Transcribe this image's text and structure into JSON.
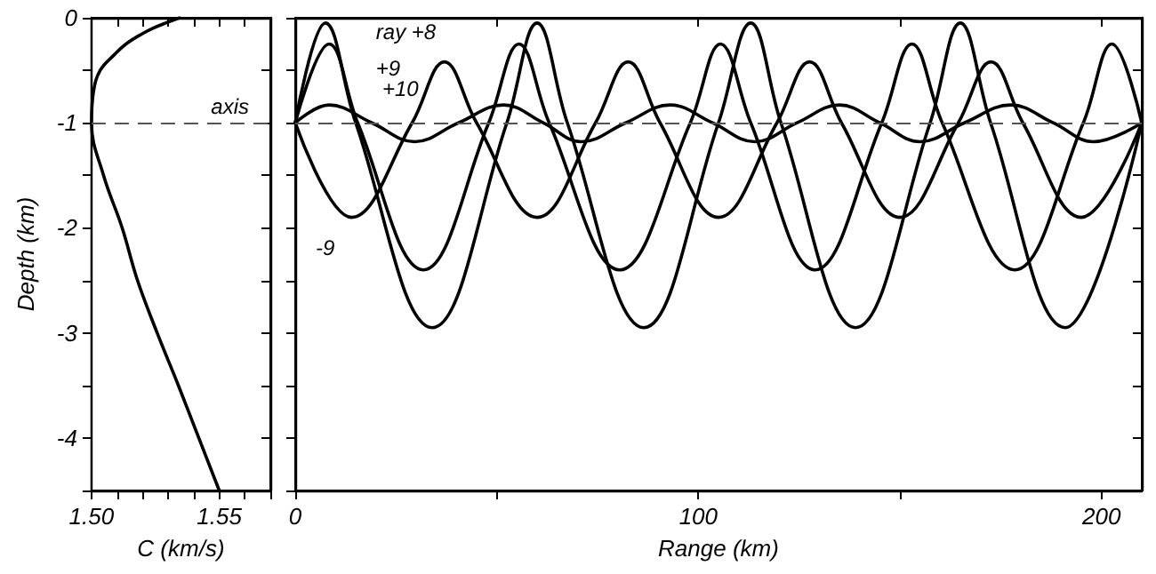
{
  "chart_data": [
    {
      "type": "line",
      "xlabel": "C (km/s)",
      "ylabel": "Depth (km)",
      "xlim": [
        1.5,
        1.57
      ],
      "xticks": [
        {
          "value": 1.5,
          "label": "1.50"
        },
        {
          "value": 1.51,
          "label": null
        },
        {
          "value": 1.52,
          "label": null
        },
        {
          "value": 1.53,
          "label": null
        },
        {
          "value": 1.54,
          "label": null
        },
        {
          "value": 1.55,
          "label": "1.55"
        },
        {
          "value": 1.56,
          "label": null
        },
        {
          "value": 1.57,
          "label": null
        }
      ],
      "ylim": [
        -4.5,
        0
      ],
      "yticks": [
        0,
        {
          "value": -0.5,
          "label": null
        },
        -1,
        {
          "value": -1.5,
          "label": null
        },
        -2,
        {
          "value": -2.5,
          "label": null
        },
        -3,
        {
          "value": -3.5,
          "label": null
        },
        -4,
        {
          "value": -4.5,
          "label": null
        }
      ],
      "grid": false,
      "marker": "none",
      "line_style": "solid",
      "ref_lines": [
        {
          "axis": "y",
          "value": -1,
          "label": "axis",
          "color": "#555555",
          "line_style": "dashed"
        }
      ],
      "series": [
        {
          "color": "#000000",
          "x": [
            1.5345,
            1.529,
            1.524,
            1.52,
            1.5135,
            1.509,
            1.5034,
            1.5008,
            1.5,
            1.5047,
            1.512,
            1.518,
            1.5257,
            1.534,
            1.542,
            1.55
          ],
          "values": [
            0,
            -0.05,
            -0.1,
            -0.15,
            -0.25,
            -0.35,
            -0.5,
            -0.7,
            -1,
            -1.5,
            -2,
            -2.5,
            -3,
            -3.5,
            -4,
            -4.5
          ]
        }
      ]
    },
    {
      "type": "line",
      "xlabel": "Range (km)",
      "xlim": [
        0,
        210
      ],
      "xticks": [
        0,
        {
          "value": 50,
          "label": null
        },
        100,
        {
          "value": 150,
          "label": null
        },
        200
      ],
      "ylim": [
        -4.5,
        0
      ],
      "yticks": [
        0,
        {
          "value": -0.5,
          "label": null
        },
        -1,
        {
          "value": -1.5,
          "label": null
        },
        -2,
        {
          "value": -2.5,
          "label": null
        },
        -3,
        {
          "value": -3.5,
          "label": null
        },
        -4,
        {
          "value": -4.5,
          "label": null
        }
      ],
      "tick_labels": "x",
      "grid": false,
      "marker": "none",
      "line_style": "solid",
      "ref_lines": [
        {
          "axis": "y",
          "value": -1,
          "color": "#555555",
          "line_style": "dashed"
        }
      ],
      "annotations": [
        {
          "text": "ray +8",
          "x": 9,
          "y": -0.1
        },
        {
          "text": "+9",
          "x": 9,
          "y": -0.35
        },
        {
          "text": "+10",
          "x": 15,
          "y": -0.88
        },
        {
          "text": "-9",
          "x": 12,
          "y": -1.95
        }
      ],
      "series": [
        {
          "color": "#000000",
          "x": [
            0,
            7.5,
            15,
            34,
            52.5,
            60,
            67.5,
            86.5,
            105,
            113,
            120.5,
            139,
            157.5,
            165,
            172.5,
            191,
            210
          ],
          "values": [
            -1,
            -0.05,
            -1,
            -2.95,
            -1,
            -0.05,
            -1,
            -2.95,
            -1,
            -0.05,
            -1,
            -2.95,
            -1,
            -0.05,
            -1,
            -2.95,
            -1
          ]
        },
        {
          "color": "#000000",
          "x": [
            0,
            8.4,
            15.5,
            31.8,
            48,
            55.5,
            63,
            80.5,
            98,
            105.5,
            113,
            129,
            145.5,
            153,
            160.5,
            178.5,
            195.5,
            202.6,
            210
          ],
          "values": [
            -1,
            -0.25,
            -1,
            -2.4,
            -1,
            -0.25,
            -1,
            -2.4,
            -1,
            -0.25,
            -1,
            -2.4,
            -1,
            -0.25,
            -1,
            -2.4,
            -1,
            -0.25,
            -1
          ]
        },
        {
          "color": "#000000",
          "x": [
            0,
            14,
            29,
            37,
            45,
            60,
            74.5,
            82.6,
            90.5,
            105,
            119.5,
            127.6,
            135.5,
            150,
            164.5,
            172.6,
            180.5,
            195,
            210
          ],
          "values": [
            -1,
            -1.9,
            -1,
            -0.42,
            -1,
            -1.9,
            -1,
            -0.42,
            -1,
            -1.9,
            -1,
            -0.42,
            -1,
            -1.9,
            -1,
            -0.42,
            -1,
            -1.9,
            -1
          ]
        },
        {
          "color": "#000000",
          "x": [
            0,
            8.4,
            19,
            29.6,
            40.5,
            51.7,
            61.5,
            71,
            82,
            93,
            103.5,
            114,
            124.5,
            135,
            145,
            155,
            166,
            177.5,
            188,
            198,
            210
          ],
          "values": [
            -1,
            -0.83,
            -1,
            -1.18,
            -1,
            -0.83,
            -1,
            -1.18,
            -1,
            -0.83,
            -1,
            -1.18,
            -1,
            -0.83,
            -1,
            -1.18,
            -1,
            -0.83,
            -1,
            -1.18,
            -1
          ]
        }
      ]
    }
  ]
}
